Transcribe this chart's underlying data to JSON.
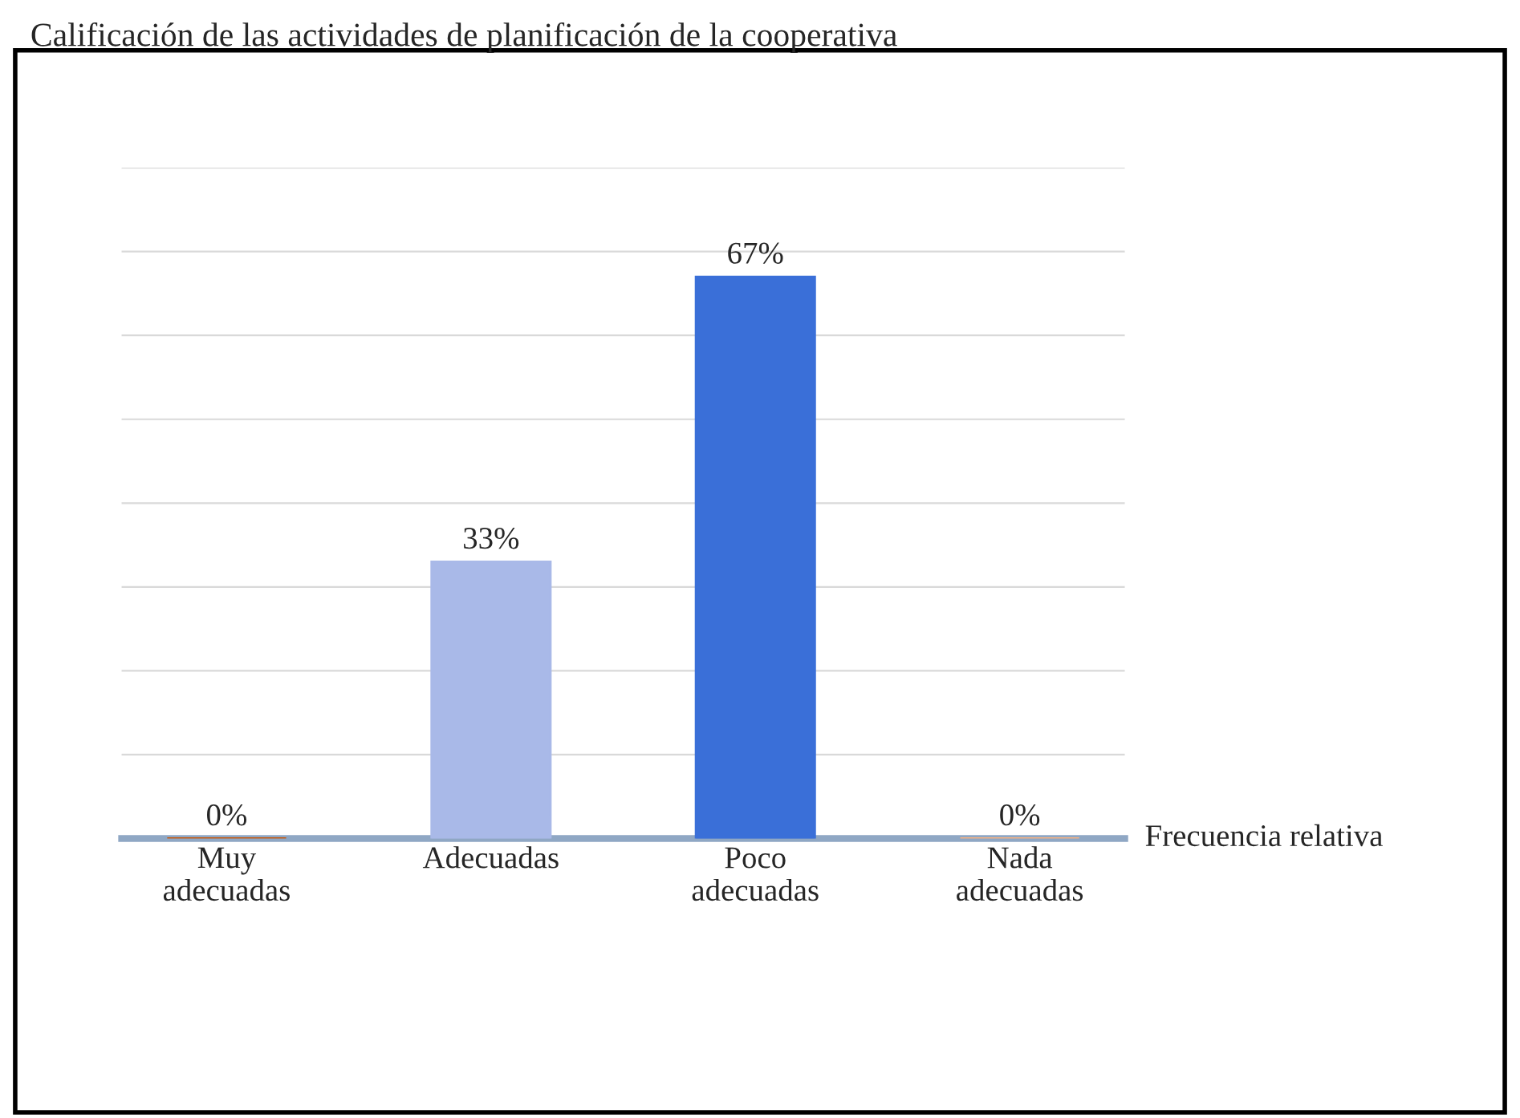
{
  "chart_data": {
    "type": "bar",
    "title": "Calificación de las actividades de planificación de la cooperativa",
    "categories": [
      "Muy\nadecuadas",
      "Adecuadas",
      "Poco\nadecuadas",
      "Nada\nadecuadas"
    ],
    "series": [
      {
        "name": "Frecuencia relativa",
        "values": [
          0,
          33,
          67,
          0
        ],
        "colors": [
          "#c55a11",
          "#a9b9e8",
          "#3a6fd8",
          "#f4b183"
        ],
        "value_labels": [
          "0%",
          "33%",
          "67%",
          "0%"
        ]
      }
    ],
    "ylim": [
      0,
      80
    ],
    "yticks": [
      {
        "value": 0,
        "label": null
      },
      {
        "value": 10,
        "label": null
      },
      {
        "value": 20,
        "label": null
      },
      {
        "value": 30,
        "label": null
      },
      {
        "value": 40,
        "label": null
      },
      {
        "value": 50,
        "label": null
      },
      {
        "value": 60,
        "label": null
      },
      {
        "value": 70,
        "label": null
      },
      {
        "value": 80,
        "label": null
      }
    ],
    "grid": "y",
    "tick_labels": "x"
  }
}
